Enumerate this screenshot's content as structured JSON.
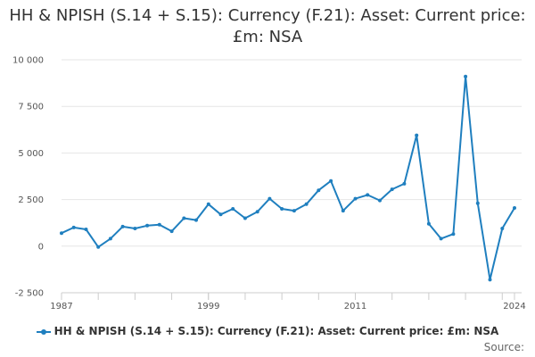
{
  "chart_data": {
    "type": "line",
    "title": "HH & NPISH (S.14 + S.15): Currency (F.21): Asset: Current price: £m: NSA",
    "xlabel": "",
    "ylabel": "",
    "ylim": [
      -2500,
      10000
    ],
    "xlim": [
      1987,
      2024
    ],
    "yticks": [
      -2500,
      0,
      2500,
      5000,
      7500,
      10000
    ],
    "ytick_labels": [
      "-2 500",
      "0",
      "2 500",
      "5 000",
      "7 500",
      "10 000"
    ],
    "xticks": [
      1987,
      1999,
      2011,
      2024
    ],
    "xtick_labels": [
      "1987",
      "1999",
      "2011",
      "2024"
    ],
    "grid": "horizontal",
    "legend_position": "bottom",
    "series": [
      {
        "name": "HH & NPISH (S.14 + S.15): Currency (F.21): Asset: Current price: £m: NSA",
        "color": "#1f7fbf",
        "x": [
          1987,
          1988,
          1989,
          1990,
          1991,
          1992,
          1993,
          1994,
          1995,
          1996,
          1997,
          1998,
          1999,
          2000,
          2001,
          2002,
          2003,
          2004,
          2005,
          2006,
          2007,
          2008,
          2009,
          2010,
          2011,
          2012,
          2013,
          2014,
          2015,
          2016,
          2017,
          2018,
          2019,
          2020,
          2021,
          2022,
          2023,
          2024
        ],
        "values": [
          700,
          1000,
          900,
          -50,
          400,
          1050,
          950,
          1100,
          1150,
          800,
          1500,
          1400,
          2250,
          1700,
          2000,
          1500,
          1850,
          2550,
          2000,
          1900,
          2250,
          3000,
          3500,
          1900,
          2550,
          2750,
          2450,
          3050,
          3350,
          5950,
          1200,
          400,
          650,
          9100,
          2300,
          -1800,
          950,
          2050
        ]
      }
    ]
  },
  "legend": {
    "label": "HH & NPISH (S.14 + S.15): Currency (F.21): Asset: Current price: £m: NSA"
  },
  "source_label": "Source:"
}
